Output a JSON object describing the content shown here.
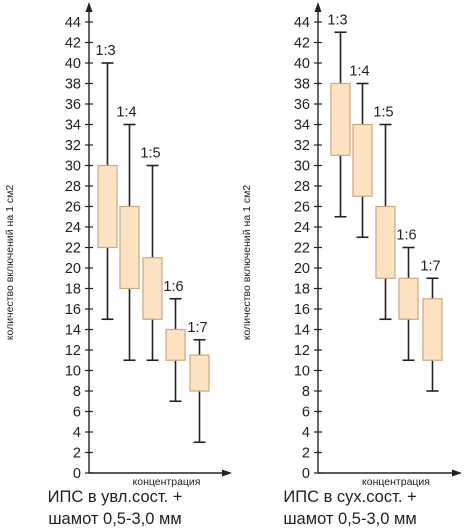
{
  "chart_data": [
    {
      "type": "boxplot",
      "xlabel": "концентрация",
      "ylabel": "количество включений на 1 см2",
      "ylim": [
        0,
        44
      ],
      "yticks": [
        0,
        2,
        4,
        6,
        8,
        10,
        12,
        14,
        16,
        18,
        20,
        22,
        24,
        26,
        28,
        30,
        32,
        34,
        36,
        38,
        40,
        42,
        44
      ],
      "caption": [
        "ИПС в увл.сост. +",
        "шамот 0,5-3,0 мм"
      ],
      "box_fill": "#fde3c1",
      "box_stroke": "#c8a882",
      "boxes": [
        {
          "label": "1:3",
          "whisker_low": 15,
          "q1": 22,
          "q3": 30,
          "whisker_high": 40
        },
        {
          "label": "1:4",
          "whisker_low": 11,
          "q1": 18,
          "q3": 26,
          "whisker_high": 34
        },
        {
          "label": "1:5",
          "whisker_low": 11,
          "q1": 15,
          "q3": 21,
          "whisker_high": 30
        },
        {
          "label": "1:6",
          "whisker_low": 7,
          "q1": 11,
          "q3": 14,
          "whisker_high": 17
        },
        {
          "label": "1:7",
          "whisker_low": 3,
          "q1": 8,
          "q3": 11.5,
          "whisker_high": 13
        }
      ]
    },
    {
      "type": "boxplot",
      "xlabel": "концентрация",
      "ylabel": "количество включений на 1 см2",
      "ylim": [
        0,
        44
      ],
      "yticks": [
        0,
        2,
        4,
        6,
        8,
        10,
        12,
        14,
        16,
        18,
        20,
        22,
        24,
        26,
        28,
        30,
        32,
        34,
        36,
        38,
        40,
        42,
        44
      ],
      "caption": [
        "ИПС в сух.сост. +",
        "шамот 0,5-3,0 мм"
      ],
      "box_fill": "#fde3c1",
      "box_stroke": "#c8a882",
      "boxes": [
        {
          "label": "1:3",
          "whisker_low": 25,
          "q1": 31,
          "q3": 38,
          "whisker_high": 43
        },
        {
          "label": "1:4",
          "whisker_low": 23,
          "q1": 27,
          "q3": 34,
          "whisker_high": 38
        },
        {
          "label": "1:5",
          "whisker_low": 15,
          "q1": 19,
          "q3": 26,
          "whisker_high": 34
        },
        {
          "label": "1:6",
          "whisker_low": 11,
          "q1": 15,
          "q3": 19,
          "whisker_high": 22
        },
        {
          "label": "1:7",
          "whisker_low": 8,
          "q1": 11,
          "q3": 17,
          "whisker_high": 19
        }
      ]
    }
  ]
}
